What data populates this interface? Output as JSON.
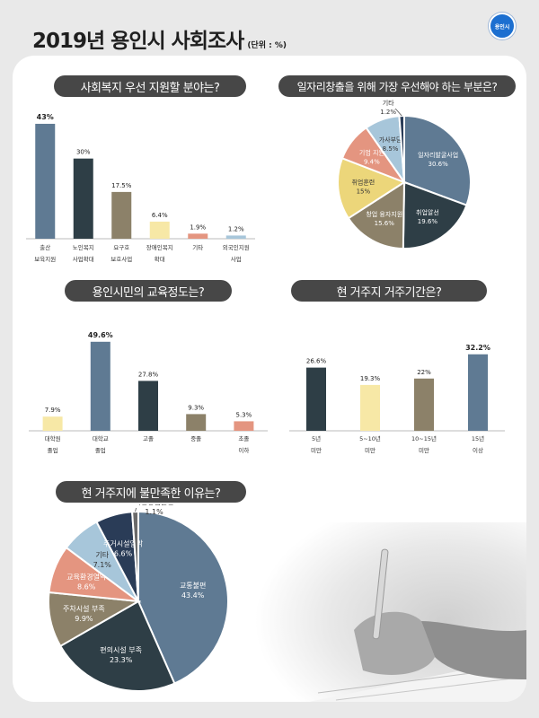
{
  "header": {
    "title": "2019년 용인시 사회조사",
    "unit": "(단위 : %)",
    "logo_text": "용인시"
  },
  "colors": {
    "slate_blue": "#5f7a93",
    "dark_slate": "#2e3e46",
    "olive": "#8c8169",
    "cream": "#f7e8a6",
    "salmon": "#e49580",
    "light_blue": "#a7c6da",
    "yellow": "#ecd67a",
    "navy": "#2a3c57",
    "pill_bg": "#474747"
  },
  "chart_data": [
    {
      "type": "bar",
      "title": "사회복지 우선 지원할 분야는?",
      "categories": [
        [
          "출산",
          "보육지원"
        ],
        [
          "노인복지",
          "사업확대"
        ],
        [
          "요구호",
          "보호사업"
        ],
        [
          "장애인복지",
          "확대"
        ],
        [
          "기타"
        ],
        [
          "외국인지원",
          "사업"
        ]
      ],
      "values": [
        43,
        30,
        17.5,
        6.4,
        1.9,
        1.2
      ],
      "value_labels": [
        "43%",
        "30%",
        "17.5%",
        "6.4%",
        "1.9%",
        "1.2%"
      ],
      "colors": [
        "#5f7a93",
        "#2e3e46",
        "#8c8169",
        "#f7e8a6",
        "#e49580",
        "#a7c6da"
      ],
      "ylim": [
        0,
        45
      ]
    },
    {
      "type": "pie",
      "title": "일자리창출을 위해 가장 우선해야 하는 부분은?",
      "labels": [
        "일자리발굴사업",
        "취업알선",
        "창업 융자지원",
        "취업훈련",
        "기업 지원",
        "가사부담",
        "기타"
      ],
      "values": [
        30.6,
        19.6,
        15.6,
        15,
        9.4,
        8.5,
        1.2
      ],
      "value_labels": [
        "30.6%",
        "19.6%",
        "15.6%",
        "15%",
        "9.4%",
        "8.5%",
        "1.2%"
      ],
      "colors": [
        "#5f7a93",
        "#2e3e46",
        "#8c8169",
        "#ecd67a",
        "#e49580",
        "#a7c6da",
        "#2a3c57"
      ]
    },
    {
      "type": "bar",
      "title": "용인시민의 교육정도는?",
      "categories": [
        [
          "대학원",
          "졸업"
        ],
        [
          "대학교",
          "졸업"
        ],
        [
          "고졸"
        ],
        [
          "중졸"
        ],
        [
          "초졸",
          "이하"
        ]
      ],
      "values": [
        7.9,
        49.6,
        27.8,
        9.3,
        5.3
      ],
      "value_labels": [
        "7.9%",
        "49.6%",
        "27.8%",
        "9.3%",
        "5.3%"
      ],
      "colors": [
        "#f7e8a6",
        "#5f7a93",
        "#2e3e46",
        "#8c8169",
        "#e49580"
      ],
      "ylim": [
        0,
        50
      ]
    },
    {
      "type": "bar",
      "title": "현 거주지 거주기간은?",
      "categories": [
        [
          "5년",
          "미만"
        ],
        [
          "5~10년",
          "미만"
        ],
        [
          "10~15년",
          "미만"
        ],
        [
          "15년",
          "이상"
        ]
      ],
      "values": [
        26.6,
        19.3,
        22,
        32.2
      ],
      "value_labels": [
        "26.6%",
        "19.3%",
        "22%",
        "32.2%"
      ],
      "colors": [
        "#2e3e46",
        "#f7e8a6",
        "#8c8169",
        "#5f7a93"
      ],
      "ylim": [
        0,
        34
      ]
    },
    {
      "type": "pie",
      "title": "현 거주지에 불만족한 이유는?",
      "labels": [
        "교통불편",
        "편의시설 부족",
        "주차시설 부족",
        "교육환경열악",
        "기타",
        "주거시설열악",
        "치안방범불안"
      ],
      "values": [
        43.4,
        23.3,
        9.9,
        8.6,
        7.1,
        6.6,
        1.1
      ],
      "value_labels": [
        "43.4%",
        "23.3%",
        "9.9%",
        "8.6%",
        "7.1%",
        "6.6%",
        "1.1%"
      ],
      "colors": [
        "#5f7a93",
        "#2e3e46",
        "#8c8169",
        "#e49580",
        "#a7c6da",
        "#2a3c57",
        "#6a6a6a"
      ]
    }
  ]
}
